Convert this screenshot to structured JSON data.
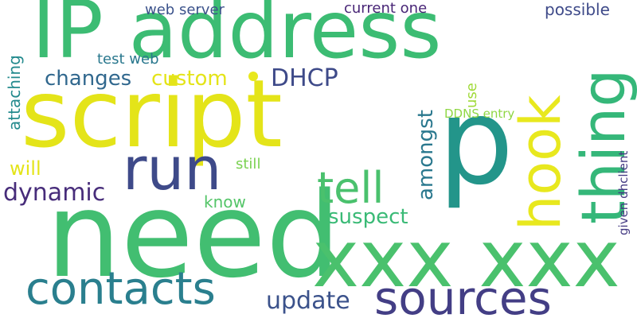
{
  "palette": {
    "yellow": "#e4e419",
    "green": "#42be71",
    "teal": "#1f968b",
    "blue": "#3b528b",
    "indigo": "#414487",
    "purple": "#472c7a",
    "lime": "#8fd744"
  },
  "words": [
    {
      "text": "IP address",
      "color": "#3cbc73"
    },
    {
      "text": "script",
      "color": "#e4e419"
    },
    {
      "text": "p",
      "color": "#23958a"
    },
    {
      "text": "need",
      "color": "#42be71"
    },
    {
      "text": "xxx xxx",
      "color": "#4ac16d"
    },
    {
      "text": "run",
      "color": "#3e4a89"
    },
    {
      "text": "contacts",
      "color": "#2a7f8e"
    },
    {
      "text": "sources",
      "color": "#433e85"
    },
    {
      "text": "thing",
      "color": "#35b779"
    },
    {
      "text": "hook",
      "color": "#e8e81e"
    },
    {
      "text": "tell",
      "color": "#4ac16d"
    },
    {
      "text": "dynamic",
      "color": "#472c7a"
    },
    {
      "text": "update",
      "color": "#3b528b"
    },
    {
      "text": "changes",
      "color": "#31688e"
    },
    {
      "text": "custom",
      "color": "#e4e419"
    },
    {
      "text": "DHCP",
      "color": "#3e4a89"
    },
    {
      "text": "amongst",
      "color": "#2a788e"
    },
    {
      "text": "suspect",
      "color": "#3aba76"
    },
    {
      "text": "will",
      "color": "#e4e419"
    },
    {
      "text": "test web",
      "color": "#2a788e"
    },
    {
      "text": "web server",
      "color": "#3b528b"
    },
    {
      "text": "current one",
      "color": "#482576"
    },
    {
      "text": "possible",
      "color": "#3e4a89"
    },
    {
      "text": "attaching",
      "color": "#238a8d"
    },
    {
      "text": "know",
      "color": "#54c568"
    },
    {
      "text": "still",
      "color": "#7ad151"
    },
    {
      "text": "use",
      "color": "#a0da39"
    },
    {
      "text": "DDNS entry",
      "color": "#8fd744"
    },
    {
      "text": "given dhclient",
      "color": "#443a83"
    }
  ],
  "dot": {
    "color": "#e8e81e"
  }
}
